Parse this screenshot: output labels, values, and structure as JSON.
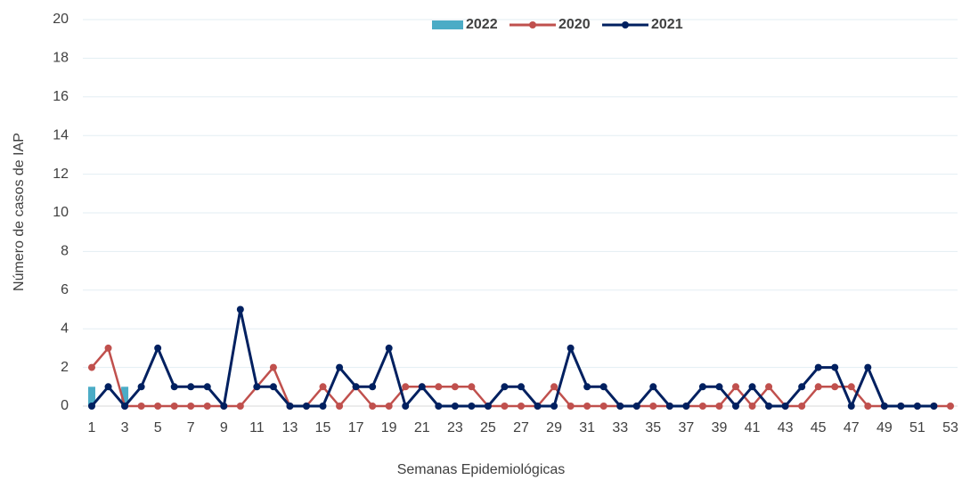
{
  "chart_data": {
    "type": "line",
    "x_label": "Semanas Epidemiológicas",
    "y_label": "Número de casos de IAP",
    "categories": [
      1,
      null,
      3,
      null,
      5,
      null,
      7,
      null,
      9,
      null,
      11,
      null,
      13,
      null,
      15,
      null,
      17,
      null,
      19,
      null,
      21,
      null,
      23,
      null,
      25,
      null,
      27,
      null,
      29,
      null,
      31,
      null,
      33,
      null,
      35,
      null,
      37,
      null,
      39,
      null,
      41,
      null,
      43,
      null,
      45,
      null,
      47,
      null,
      49,
      null,
      51,
      null,
      53
    ],
    "ylim": [
      0,
      20
    ],
    "yticks": [
      0,
      2,
      4,
      6,
      8,
      10,
      12,
      14,
      16,
      18,
      20
    ],
    "grid": true,
    "legend": "top",
    "series": [
      {
        "name": "2022",
        "type": "bar",
        "color": "#4bacc6",
        "values": [
          1,
          0,
          1,
          null,
          null,
          null,
          null,
          null,
          null,
          null,
          null,
          null,
          null,
          null,
          null,
          null,
          null,
          null,
          null,
          null,
          null,
          null,
          null,
          null,
          null,
          null,
          null,
          null,
          null,
          null,
          null,
          null,
          null,
          null,
          null,
          null,
          null,
          null,
          null,
          null,
          null,
          null,
          null,
          null,
          null,
          null,
          null,
          null,
          null,
          null,
          null,
          null,
          null
        ]
      },
      {
        "name": "2020",
        "type": "line",
        "color": "#c0504d",
        "values": [
          2,
          3,
          0,
          0,
          0,
          0,
          0,
          0,
          0,
          0,
          1,
          2,
          0,
          0,
          1,
          0,
          1,
          0,
          0,
          1,
          1,
          1,
          1,
          1,
          0,
          0,
          0,
          0,
          1,
          0,
          0,
          0,
          0,
          0,
          0,
          0,
          0,
          0,
          0,
          1,
          0,
          1,
          0,
          0,
          1,
          1,
          1,
          0,
          0,
          0,
          0,
          0,
          0
        ]
      },
      {
        "name": "2021",
        "type": "line",
        "color": "#002060",
        "values": [
          0,
          1,
          0,
          1,
          3,
          1,
          1,
          1,
          0,
          5,
          1,
          1,
          0,
          0,
          0,
          2,
          1,
          1,
          3,
          0,
          1,
          0,
          0,
          0,
          0,
          1,
          1,
          0,
          0,
          3,
          1,
          1,
          0,
          0,
          1,
          0,
          0,
          1,
          1,
          0,
          1,
          0,
          0,
          1,
          2,
          2,
          0,
          2,
          0,
          0,
          0,
          0,
          null
        ]
      }
    ]
  }
}
